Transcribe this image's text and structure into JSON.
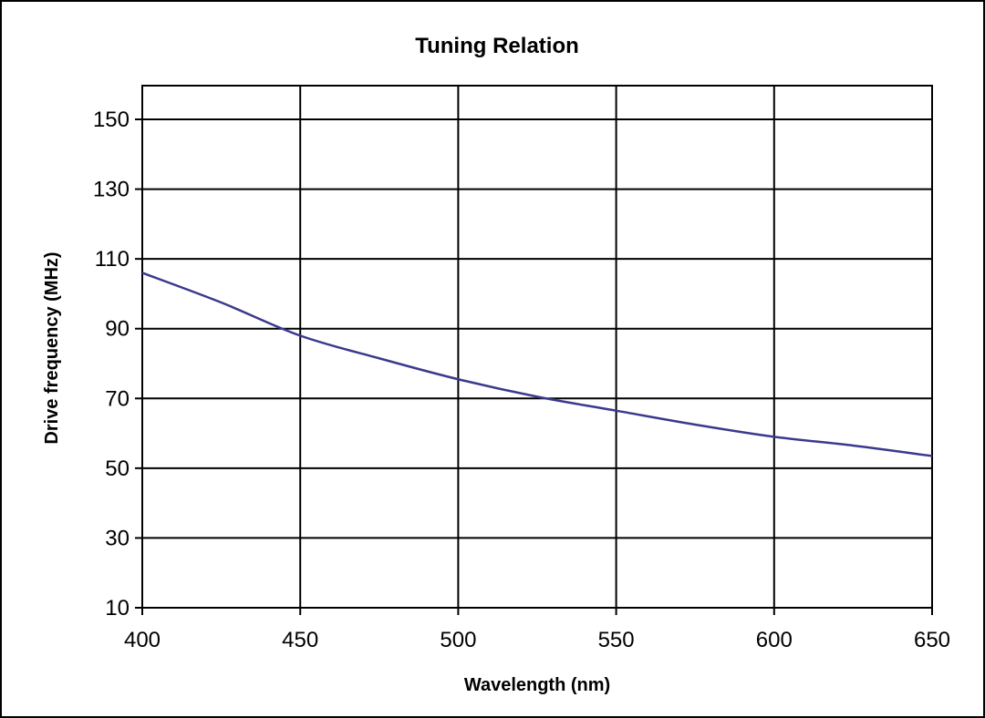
{
  "chart_data": {
    "type": "line",
    "title": "Tuning Relation",
    "xlabel": "Wavelength (nm)",
    "ylabel": "Drive frequency (MHz)",
    "xlim": [
      400,
      650
    ],
    "ylim": [
      10,
      160
    ],
    "xticks": [
      400,
      450,
      500,
      550,
      600,
      650
    ],
    "yticks": [
      10,
      30,
      50,
      70,
      90,
      110,
      130,
      150
    ],
    "grid": true,
    "legend": "none",
    "series": [
      {
        "color": "#3a3a8c",
        "x": [
          400,
          425,
          450,
          475,
          500,
          525,
          550,
          575,
          600,
          625,
          650
        ],
        "y": [
          106,
          97.5,
          88,
          81.5,
          75.5,
          70.5,
          66.5,
          62.5,
          59,
          56.5,
          53.5
        ]
      }
    ]
  }
}
